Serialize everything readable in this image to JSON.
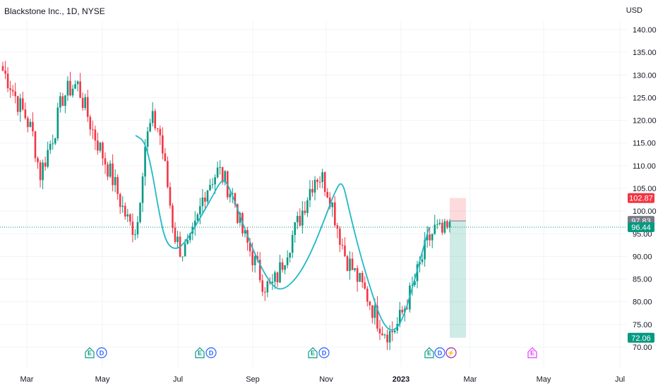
{
  "header": {
    "symbol_title": "Blackstone Inc., 1D, NYSE",
    "currency": "USD"
  },
  "chart_data": {
    "type": "candlestick",
    "y_axis": {
      "ticks": [
        "140.00",
        "135.00",
        "130.00",
        "125.00",
        "120.00",
        "115.00",
        "110.00",
        "105.00",
        "100.00",
        "95.00",
        "90.00",
        "85.00",
        "80.00",
        "75.00",
        "70.00"
      ],
      "range": [
        69.0,
        142.0
      ]
    },
    "x_axis": {
      "labels": [
        {
          "text": "Mar",
          "bold": false
        },
        {
          "text": "May",
          "bold": false
        },
        {
          "text": "Jul",
          "bold": false
        },
        {
          "text": "Sep",
          "bold": false
        },
        {
          "text": "Nov",
          "bold": false
        },
        {
          "text": "2023",
          "bold": true
        },
        {
          "text": "Mar",
          "bold": false
        },
        {
          "text": "May",
          "bold": false
        },
        {
          "text": "Jul",
          "bold": false
        }
      ]
    },
    "price_tags": [
      {
        "label": "102.87",
        "value": 102.87,
        "color": "#f23645"
      },
      {
        "label": "97.83",
        "value": 97.83,
        "color": "#787b86"
      },
      {
        "label": "96.44",
        "value": 96.44,
        "color": "#089981"
      },
      {
        "label": "72.06",
        "value": 72.06,
        "color": "#089981"
      }
    ],
    "current_price": 96.44,
    "position_tool": {
      "entry": 97.83,
      "stop": 102.87,
      "target": 72.06,
      "stop_color": "#f23645",
      "target_color": "#089981"
    },
    "indicator_color": "#22b8c6",
    "up_color": "#089981",
    "down_color": "#f23645",
    "candles_anchor_closes": [
      131,
      128,
      124,
      121,
      117,
      108,
      113,
      118,
      125,
      127,
      128,
      123,
      118,
      114,
      110,
      106,
      101,
      97,
      96,
      114,
      120,
      118,
      107,
      95,
      91,
      92,
      97,
      104,
      107,
      109,
      106,
      103,
      96,
      92,
      88,
      84,
      83,
      86,
      91,
      95,
      99,
      104,
      108,
      107,
      103,
      96,
      90,
      87,
      84,
      81,
      77,
      74,
      73,
      75,
      79,
      83,
      88,
      93,
      96,
      95,
      96
    ]
  },
  "events": [
    {
      "id": "e1",
      "letters": [
        "E",
        "D"
      ]
    },
    {
      "id": "e2",
      "letters": [
        "E",
        "D"
      ]
    },
    {
      "id": "e3",
      "letters": [
        "E",
        "D"
      ]
    },
    {
      "id": "e4",
      "letters": [
        "E",
        "D",
        "⚡"
      ]
    },
    {
      "id": "e5",
      "letters": [
        "E"
      ]
    }
  ],
  "event_colors": {
    "E": "#089981",
    "D": "#2962ff",
    "⚡": "#9c27b0",
    "E_future": "#e040fb"
  }
}
